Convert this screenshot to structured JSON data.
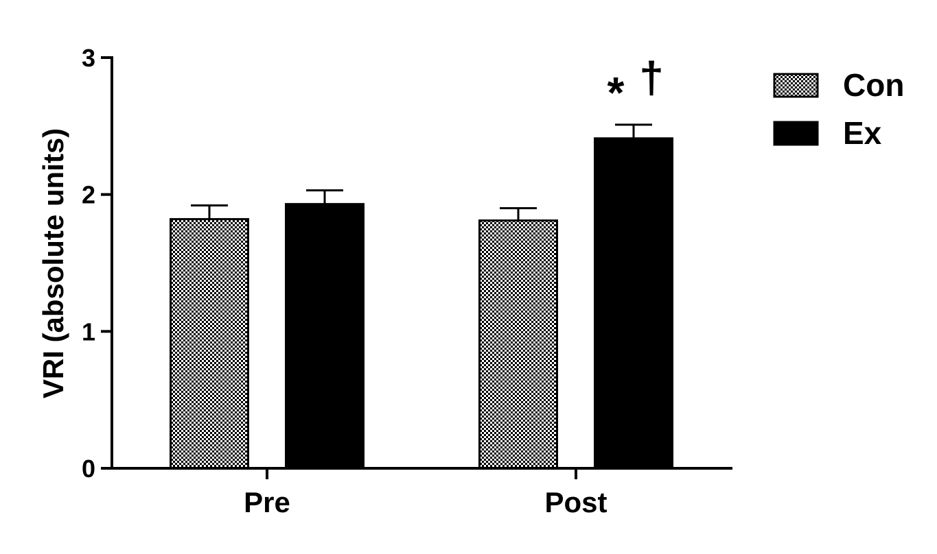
{
  "chart_data": {
    "type": "bar",
    "title": "",
    "xlabel": "",
    "ylabel": "VRI (absolute units)",
    "ylim": [
      0,
      3
    ],
    "yticks": [
      "0",
      "1",
      "2",
      "3"
    ],
    "categories": [
      "Pre",
      "Post"
    ],
    "series": [
      {
        "name": "Con",
        "fill": "checker",
        "values": [
          1.82,
          1.81
        ],
        "errors": [
          0.1,
          0.09
        ]
      },
      {
        "name": "Ex",
        "fill": "#000000",
        "values": [
          1.93,
          2.41
        ],
        "errors": [
          0.1,
          0.1
        ]
      }
    ],
    "annotations": [
      {
        "text": "*",
        "category": "Post",
        "series": "Ex"
      },
      {
        "text": "†",
        "category": "Post",
        "series": "Ex"
      }
    ],
    "legend": {
      "placement": "top-right"
    },
    "grid": false
  }
}
